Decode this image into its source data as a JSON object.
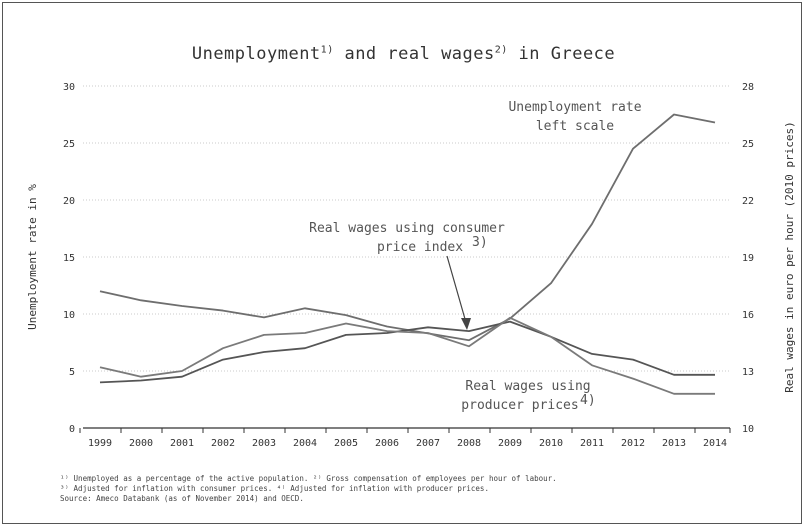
{
  "title": {
    "main": "Unemployment",
    "sup1": "1)",
    "mid": " and real wages",
    "sup2": "2)",
    "tail": " in Greece"
  },
  "footnotes": [
    "¹⁾ Unemployed as a percentage of the active population. ²⁾ Gross compensation of employees per hour of labour.",
    "³⁾ Adjusted for inflation with consumer prices. ⁴⁾ Adjusted for inflation with producer prices.",
    "Source: Ameco Databank (as of November 2014) and OECD."
  ],
  "chart_data": {
    "type": "line",
    "title": "Unemployment1) and real wages2) in Greece",
    "x": [
      "1999",
      "2000",
      "2001",
      "2002",
      "2003",
      "2004",
      "2005",
      "2006",
      "2007",
      "2008",
      "2009",
      "2010",
      "2011",
      "2012",
      "2013",
      "2014"
    ],
    "ylabel": "Unemployment rate in %",
    "y2label": "Real wages in euro per hour (2010 prices)",
    "ylim": [
      0,
      30
    ],
    "y2lim": [
      10,
      28
    ],
    "yticks": [
      "0",
      "5",
      "10",
      "15",
      "20",
      "25",
      "30"
    ],
    "y2ticks": [
      "10",
      "13",
      "16",
      "19",
      "22",
      "25",
      "28"
    ],
    "grid": true,
    "series": [
      {
        "name": "Unemployment rate",
        "axis": "left",
        "values": [
          12.0,
          11.2,
          10.7,
          10.3,
          9.7,
          10.5,
          9.9,
          8.9,
          8.3,
          7.7,
          9.6,
          12.7,
          17.9,
          24.5,
          27.5,
          26.8
        ]
      },
      {
        "name": "Real wages using consumer price index",
        "axis": "right",
        "values": [
          12.4,
          12.5,
          12.7,
          13.6,
          14.0,
          14.2,
          14.9,
          15.0,
          15.3,
          15.1,
          15.6,
          14.8,
          13.9,
          13.6,
          12.8,
          12.8
        ]
      },
      {
        "name": "Real wages using producer prices",
        "axis": "right",
        "values": [
          13.2,
          12.7,
          13.0,
          14.2,
          14.9,
          15.0,
          15.5,
          15.1,
          15.0,
          14.3,
          15.8,
          14.8,
          13.3,
          12.6,
          11.8,
          11.8
        ]
      }
    ],
    "annotations": {
      "unemployment": [
        "Unemployment rate",
        "left scale"
      ],
      "cpi": [
        "Real wages using consumer",
        "price index",
        "3)"
      ],
      "ppi": [
        "Real wages using",
        "producer prices",
        "4)"
      ]
    }
  }
}
